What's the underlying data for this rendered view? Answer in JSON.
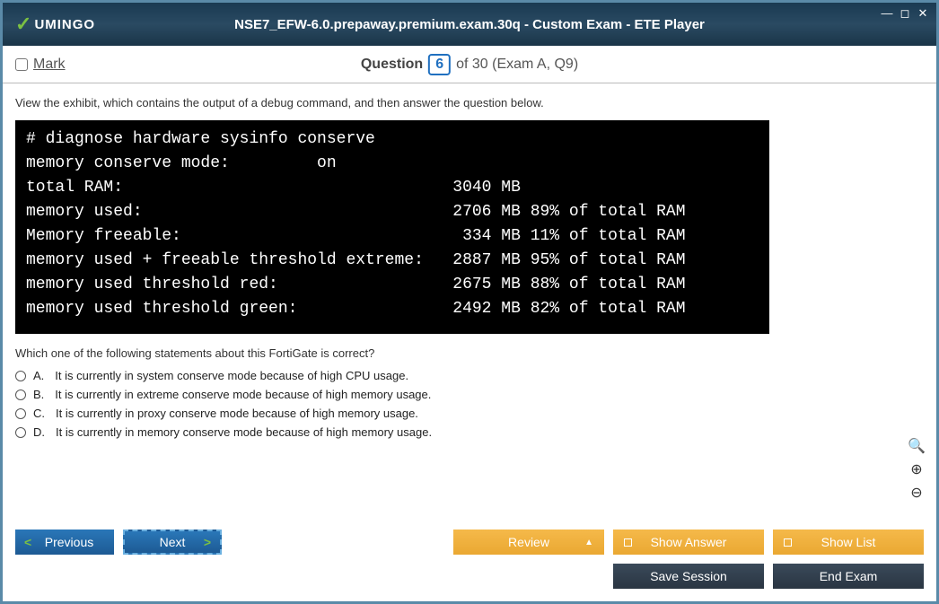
{
  "titlebar": {
    "logo_text": "UMINGO",
    "title": "NSE7_EFW-6.0.prepaway.premium.exam.30q - Custom Exam - ETE Player"
  },
  "question_bar": {
    "mark_label": "Mark",
    "question_word": "Question",
    "current": "6",
    "total_text": "of 30 (Exam A, Q9)"
  },
  "content": {
    "instruction": "View the exhibit, which contains the output of a debug command, and then answer the question below.",
    "terminal_text": "# diagnose hardware sysinfo conserve\nmemory conserve mode:         on\ntotal RAM:                                  3040 MB\nmemory used:                                2706 MB 89% of total RAM\nMemory freeable:                             334 MB 11% of total RAM\nmemory used + freeable threshold extreme:   2887 MB 95% of total RAM\nmemory used threshold red:                  2675 MB 88% of total RAM\nmemory used threshold green:                2492 MB 82% of total RAM",
    "question_text": "Which one of the following statements about this FortiGate is correct?",
    "options": [
      {
        "letter": "A.",
        "text": "It is currently in system conserve mode because of high CPU usage."
      },
      {
        "letter": "B.",
        "text": "It is currently in extreme conserve mode because of high memory usage."
      },
      {
        "letter": "C.",
        "text": "It is currently in proxy conserve mode because of high memory usage."
      },
      {
        "letter": "D.",
        "text": "It is currently in memory conserve mode because of high memory usage."
      }
    ]
  },
  "footer": {
    "previous": "Previous",
    "next": "Next",
    "review": "Review",
    "show_answer": "Show Answer",
    "show_list": "Show List",
    "save_session": "Save Session",
    "end_exam": "End Exam"
  },
  "colors": {
    "accent_blue": "#2070c0",
    "orange": "#eaa832",
    "green": "#7bc043"
  }
}
